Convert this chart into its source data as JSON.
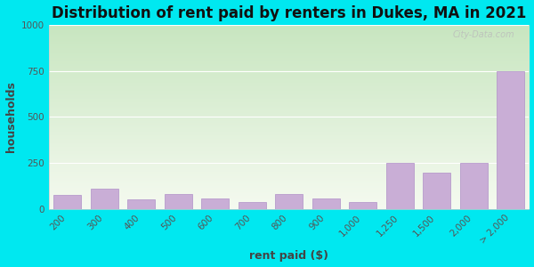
{
  "title": "Distribution of rent paid by renters in Dukes, MA in 2021",
  "xlabel": "rent paid ($)",
  "ylabel": "households",
  "categories": [
    "200",
    "300",
    "400",
    "500",
    "600",
    "700",
    "800",
    "900",
    "1,000",
    "1,250",
    "1,500",
    "2,000",
    "> 2,000"
  ],
  "values": [
    75,
    110,
    50,
    80,
    55,
    38,
    80,
    55,
    38,
    250,
    195,
    250,
    750
  ],
  "bar_color": "#c9aed6",
  "bar_edge_color": "#b090c8",
  "ylim": [
    0,
    1000
  ],
  "yticks": [
    0,
    250,
    500,
    750,
    1000
  ],
  "bg_outer": "#00e8f0",
  "bg_plot_top": "#c8e6c0",
  "bg_plot_bottom": "#f5faf0",
  "title_fontsize": 12,
  "axis_label_fontsize": 9,
  "tick_fontsize": 7.5,
  "watermark_text": "City-Data.com"
}
